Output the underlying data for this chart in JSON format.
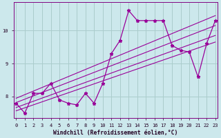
{
  "x": [
    0,
    1,
    2,
    3,
    4,
    5,
    6,
    7,
    8,
    9,
    10,
    11,
    12,
    13,
    14,
    15,
    16,
    17,
    18,
    19,
    20,
    21,
    22,
    23
  ],
  "y_main": [
    7.8,
    7.5,
    8.1,
    8.1,
    8.4,
    7.9,
    7.8,
    7.75,
    8.1,
    7.8,
    8.4,
    9.3,
    9.7,
    10.6,
    10.3,
    10.3,
    10.3,
    10.3,
    9.55,
    9.4,
    9.35,
    8.6,
    9.6,
    10.3
  ],
  "bg_color": "#cce8ec",
  "line_color": "#990099",
  "grid_color": "#aacccc",
  "xlabel": "Windchill (Refroidissement éolien,°C)",
  "yticks": [
    8,
    9,
    10
  ],
  "xticks": [
    0,
    1,
    2,
    3,
    4,
    5,
    6,
    7,
    8,
    9,
    10,
    11,
    12,
    13,
    14,
    15,
    16,
    17,
    18,
    19,
    20,
    21,
    22,
    23
  ],
  "xlim": [
    0,
    23
  ],
  "ylim": [
    7.35,
    10.85
  ],
  "trend_lines": [
    [
      7.95,
      10.45
    ],
    [
      7.82,
      10.15
    ],
    [
      7.67,
      9.85
    ],
    [
      7.57,
      9.65
    ]
  ]
}
